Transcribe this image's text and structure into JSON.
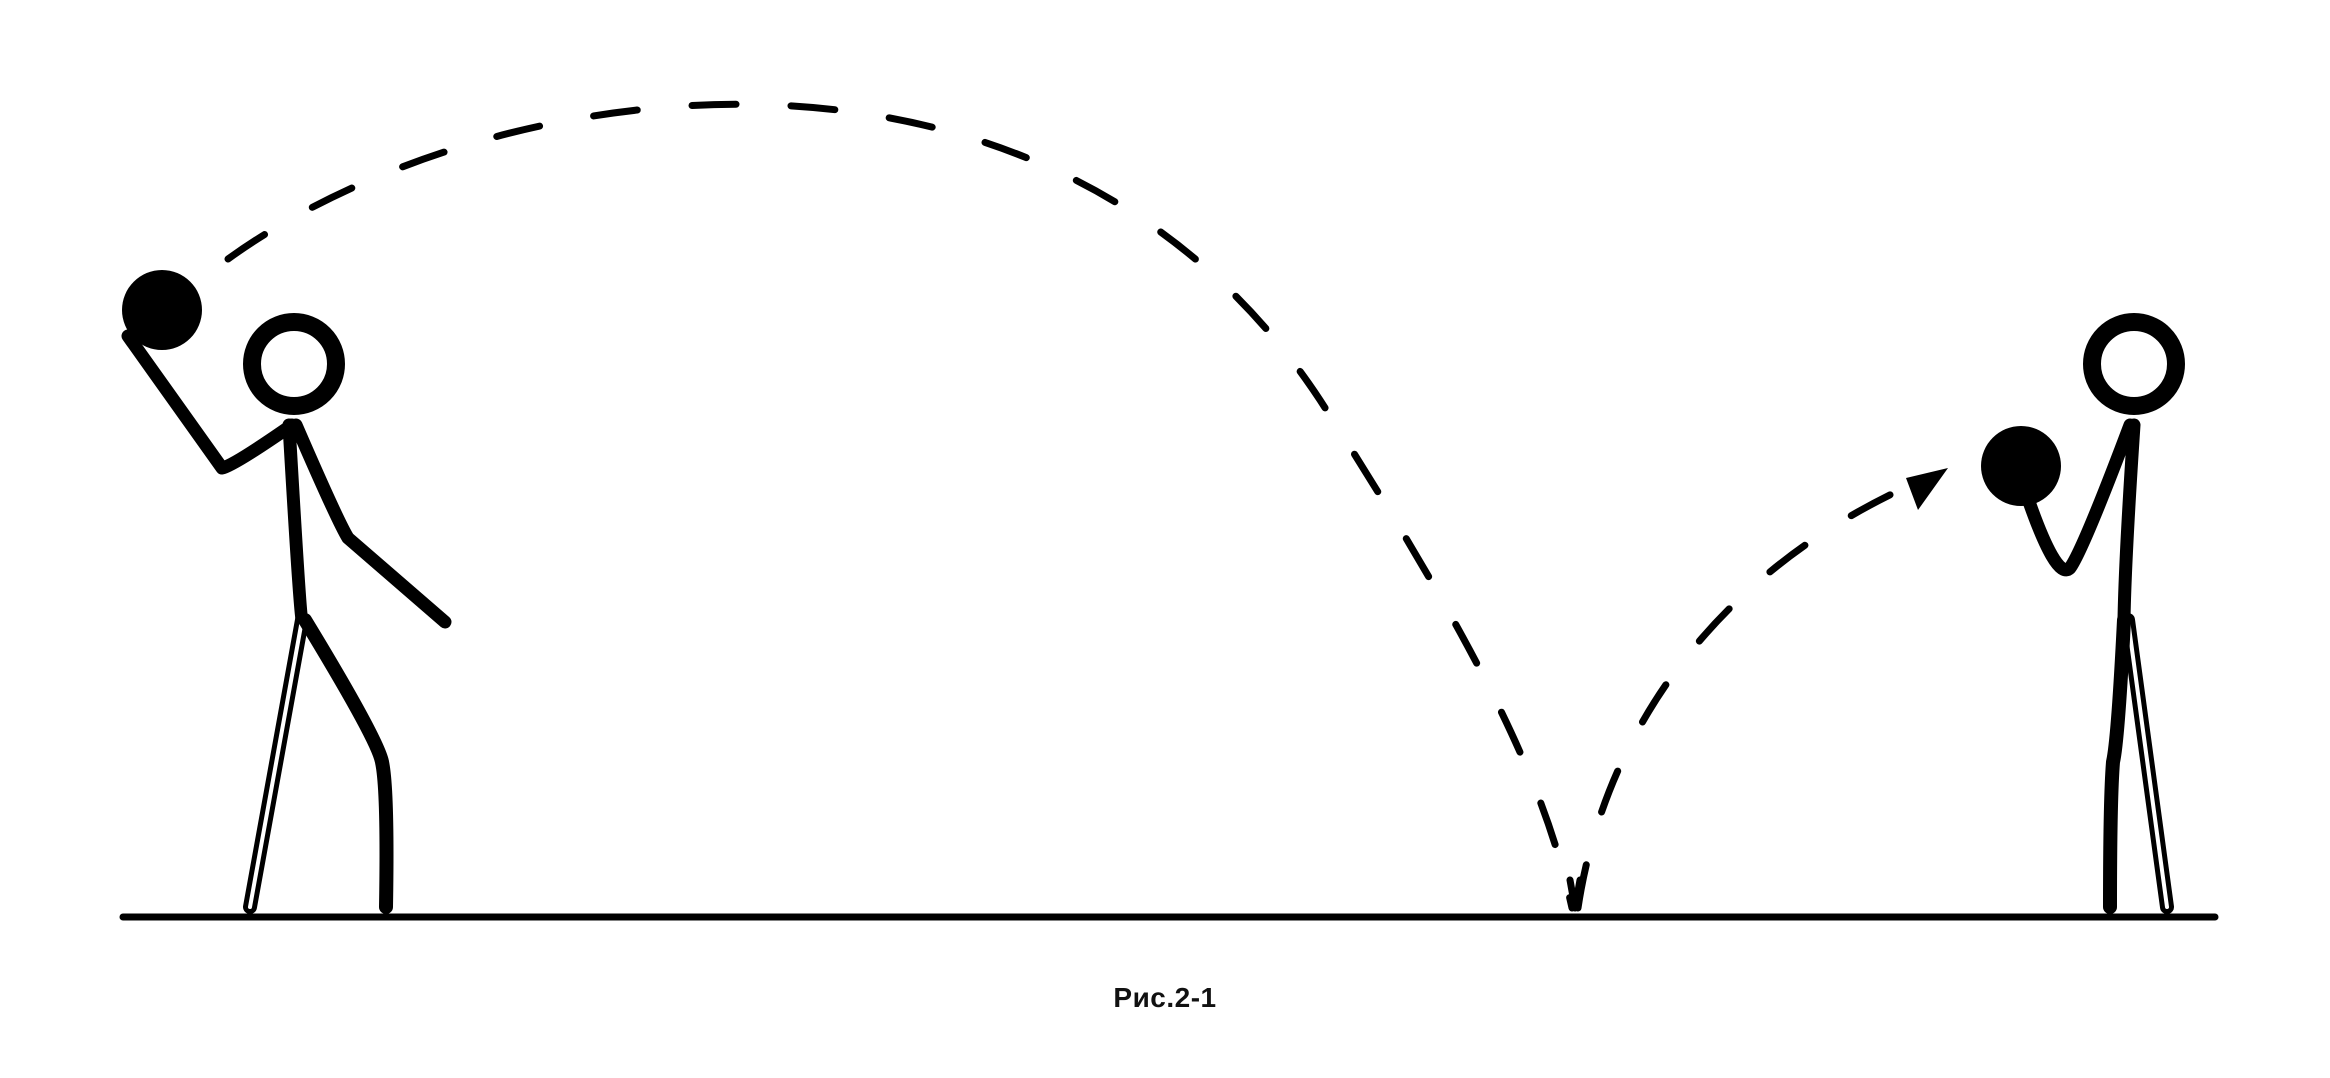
{
  "figure": {
    "caption": "Рис.2-1"
  },
  "colors": {
    "ink": "#000000",
    "background": "#ffffff"
  },
  "scene": {
    "players": [
      "thrower",
      "catcher"
    ],
    "ball_path": "bounce-pass",
    "icons": [
      "ball-icon",
      "arrow-head-icon"
    ]
  }
}
